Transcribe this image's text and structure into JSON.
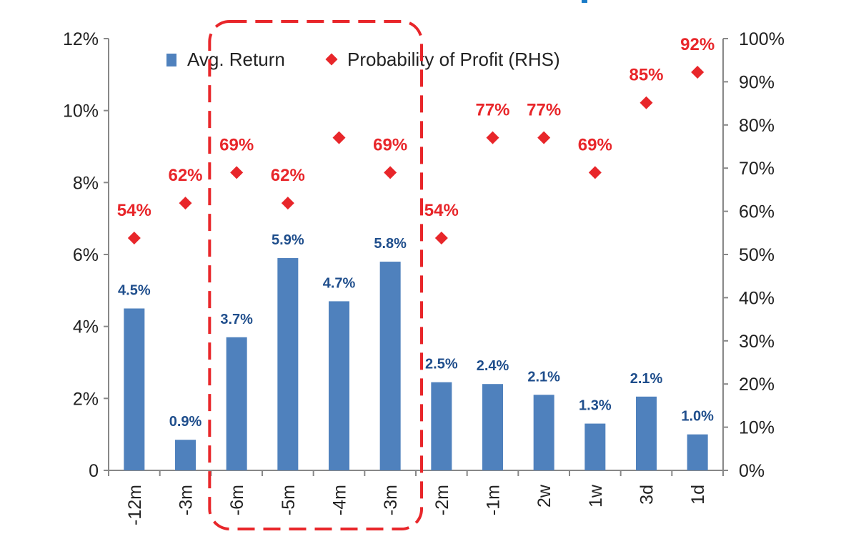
{
  "chart_data": {
    "type": "bar",
    "categories": [
      "-12m",
      "-3m",
      "-6m",
      "-5m",
      "-4m",
      "-3m",
      "-2m",
      "-1m",
      "2w",
      "1w",
      "3d",
      "1d"
    ],
    "series": [
      {
        "name": "Avg. Return",
        "type": "bar",
        "axis": "left",
        "values": [
          4.5,
          0.85,
          3.7,
          5.9,
          4.7,
          5.8,
          2.45,
          2.4,
          2.1,
          1.3,
          2.05,
          1.0
        ],
        "labels": [
          "4.5%",
          "0.9%",
          "3.7%",
          "5.9%",
          "4.7%",
          "5.8%",
          "2.5%",
          "2.4%",
          "2.1%",
          "1.3%",
          "2.1%",
          "1.0%"
        ]
      },
      {
        "name": "Probability of Profit (RHS)",
        "type": "scatter",
        "axis": "right",
        "marker": "diamond",
        "values": [
          54,
          62,
          69,
          62,
          77,
          69,
          54,
          77,
          77,
          69,
          85,
          92
        ],
        "labels": [
          "54%",
          "62%",
          "69%",
          "62%",
          "",
          "69%",
          "54%",
          "77%",
          "77%",
          "69%",
          "85%",
          "92%"
        ]
      }
    ],
    "y_left": {
      "lim": [
        0,
        12
      ],
      "ticks": [
        0,
        2,
        4,
        6,
        8,
        10,
        12
      ],
      "tick_labels": [
        "0",
        "2%",
        "4%",
        "6%",
        "8%",
        "10%",
        "12%"
      ]
    },
    "y_right": {
      "tick_labels": [
        "0%",
        "10%",
        "20%",
        "30%",
        "40%",
        "50%",
        "60%",
        "70%",
        "80%",
        "90%",
        "100%"
      ]
    },
    "legend": {
      "position": "top",
      "entries": [
        "Avg. Return",
        "Probability of Profit (RHS)"
      ]
    },
    "highlight": {
      "style": "dashed-rounded-box",
      "categories_index": [
        2,
        5
      ],
      "color": "#e8262a"
    },
    "grid": false,
    "colors": {
      "bar": "#4f81bd",
      "bar_label": "#1f4e8c",
      "marker": "#e8262a",
      "marker_label": "#e8262a",
      "axis": "#888888"
    }
  }
}
